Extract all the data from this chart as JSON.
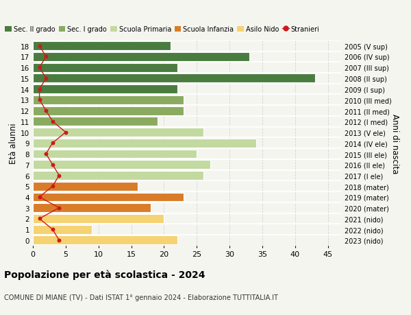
{
  "ages": [
    18,
    17,
    16,
    15,
    14,
    13,
    12,
    11,
    10,
    9,
    8,
    7,
    6,
    5,
    4,
    3,
    2,
    1,
    0
  ],
  "years": [
    "2005 (V sup)",
    "2006 (IV sup)",
    "2007 (III sup)",
    "2008 (II sup)",
    "2009 (I sup)",
    "2010 (III med)",
    "2011 (II med)",
    "2012 (I med)",
    "2013 (V ele)",
    "2014 (IV ele)",
    "2015 (III ele)",
    "2016 (II ele)",
    "2017 (I ele)",
    "2018 (mater)",
    "2019 (mater)",
    "2020 (mater)",
    "2021 (nido)",
    "2022 (nido)",
    "2023 (nido)"
  ],
  "values": [
    21,
    33,
    22,
    43,
    22,
    23,
    23,
    19,
    26,
    34,
    25,
    27,
    26,
    16,
    23,
    18,
    20,
    9,
    22
  ],
  "colors": [
    "#4a7c40",
    "#4a7c40",
    "#4a7c40",
    "#4a7c40",
    "#4a7c40",
    "#8aaa60",
    "#8aaa60",
    "#8aaa60",
    "#c2d9a0",
    "#c2d9a0",
    "#c2d9a0",
    "#c2d9a0",
    "#c2d9a0",
    "#d97c2a",
    "#d97c2a",
    "#d97c2a",
    "#f5d272",
    "#f5d272",
    "#f5d272"
  ],
  "stranieri": [
    1,
    2,
    1,
    2,
    1,
    1,
    2,
    3,
    5,
    3,
    2,
    3,
    4,
    3,
    1,
    4,
    1,
    3,
    4
  ],
  "stranieri_color": "#cc1a1a",
  "title_main": "Popolazione per età scolastica - 2024",
  "title_sub": "COMUNE DI MIANE (TV) - Dati ISTAT 1° gennaio 2024 - Elaborazione TUTTITALIA.IT",
  "ylabel_left": "Età alunni",
  "ylabel_right": "Anni di nascita",
  "xlim": [
    0,
    47
  ],
  "xticks": [
    0,
    5,
    10,
    15,
    20,
    25,
    30,
    35,
    40,
    45
  ],
  "legend_labels": [
    "Sec. II grado",
    "Sec. I grado",
    "Scuola Primaria",
    "Scuola Infanzia",
    "Asilo Nido",
    "Stranieri"
  ],
  "legend_colors": [
    "#4a7c40",
    "#8aaa60",
    "#c2d9a0",
    "#d97c2a",
    "#f5d272",
    "#cc1a1a"
  ],
  "bg_color": "#f5f5f0",
  "bar_height": 0.82
}
